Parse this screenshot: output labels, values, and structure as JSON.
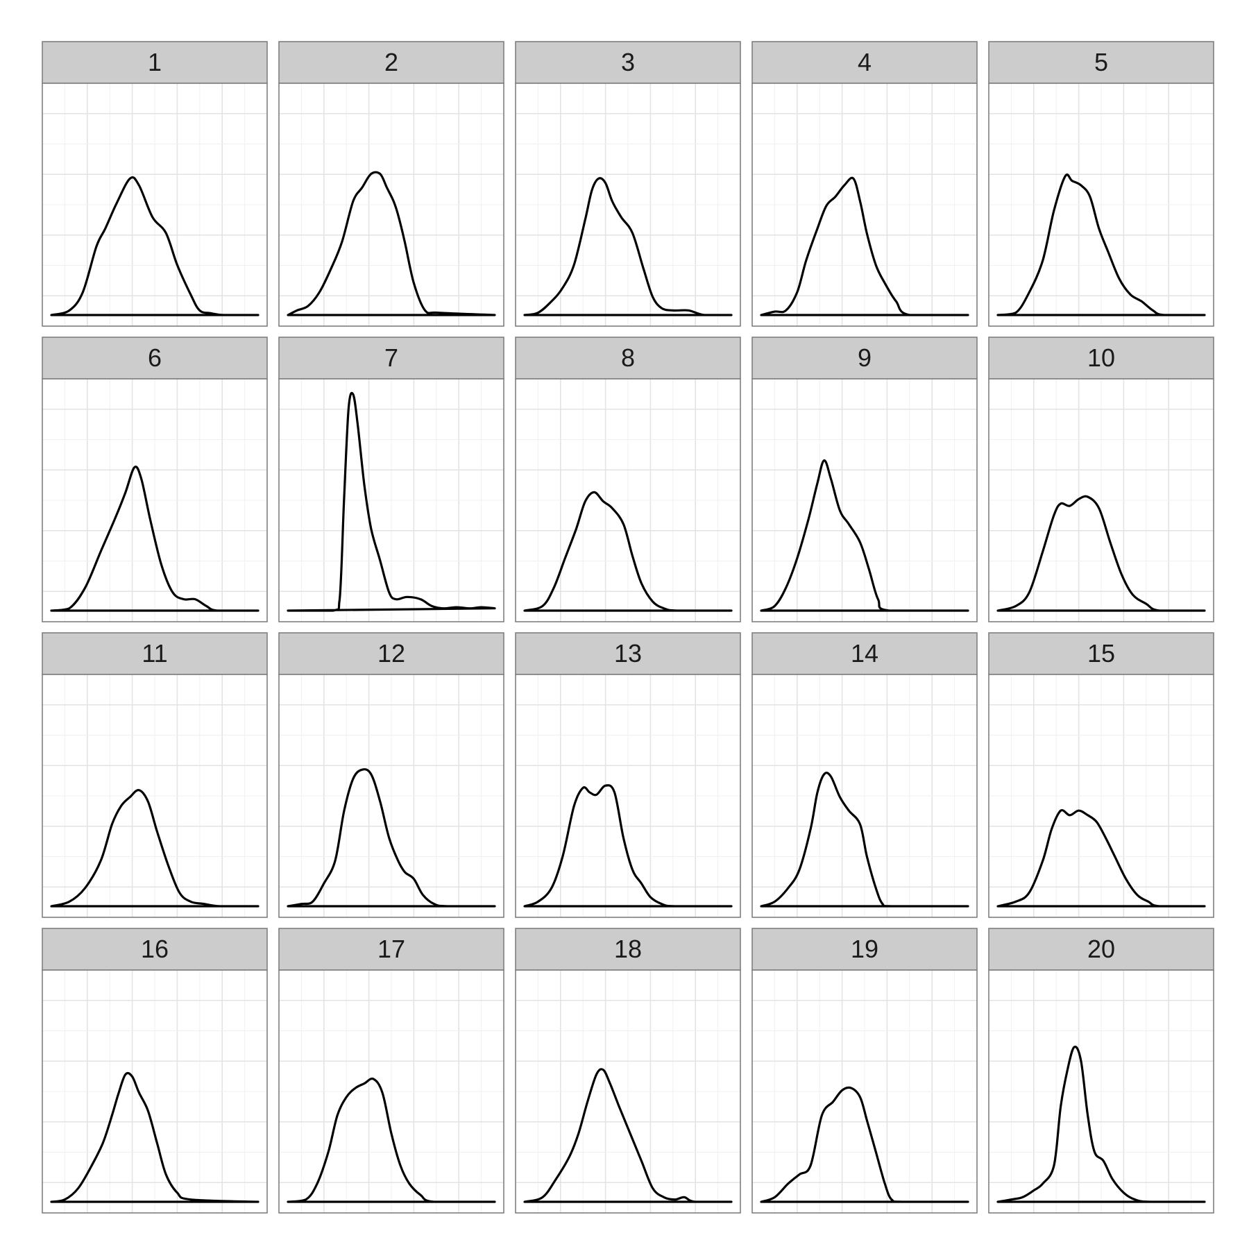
{
  "chart_data": {
    "type": "line",
    "subtype": "density-small-multiples",
    "layout": "5 columns x 4 rows",
    "facet_strip_color": "#cccccc",
    "line_color": "#000000",
    "grid": true,
    "xlim": [
      0,
      1
    ],
    "ylim": [
      0,
      1
    ],
    "panels": [
      {
        "label": "1",
        "x": [
          0.04,
          0.12,
          0.18,
          0.24,
          0.28,
          0.33,
          0.39,
          0.43,
          0.49,
          0.55,
          0.6,
          0.66,
          0.7,
          0.75,
          0.81,
          0.96
        ],
        "y": [
          0,
          0.02,
          0.1,
          0.3,
          0.38,
          0.49,
          0.6,
          0.57,
          0.43,
          0.36,
          0.22,
          0.09,
          0.02,
          0.008,
          0,
          0
        ]
      },
      {
        "label": "2",
        "x": [
          0.04,
          0.08,
          0.13,
          0.18,
          0.23,
          0.28,
          0.33,
          0.37,
          0.41,
          0.45,
          0.48,
          0.51,
          0.53,
          0.56,
          0.6,
          0.65,
          0.71,
          0.96
        ],
        "y": [
          0,
          0.02,
          0.04,
          0.1,
          0.2,
          0.32,
          0.5,
          0.56,
          0.62,
          0.62,
          0.56,
          0.5,
          0.44,
          0.32,
          0.14,
          0.02,
          0.01,
          0
        ]
      },
      {
        "label": "3",
        "x": [
          0.04,
          0.1,
          0.16,
          0.21,
          0.26,
          0.31,
          0.34,
          0.37,
          0.4,
          0.43,
          0.47,
          0.52,
          0.57,
          0.61,
          0.65,
          0.7,
          0.77,
          0.84,
          0.96
        ],
        "y": [
          0,
          0.01,
          0.06,
          0.12,
          0.22,
          0.42,
          0.55,
          0.6,
          0.58,
          0.5,
          0.43,
          0.36,
          0.2,
          0.08,
          0.03,
          0.02,
          0.02,
          0,
          0
        ]
      },
      {
        "label": "4",
        "x": [
          0.04,
          0.1,
          0.15,
          0.2,
          0.24,
          0.29,
          0.33,
          0.37,
          0.41,
          0.45,
          0.48,
          0.51,
          0.55,
          0.59,
          0.64,
          0.7,
          0.96
        ],
        "y": [
          0,
          0.015,
          0.02,
          0.1,
          0.24,
          0.38,
          0.48,
          0.52,
          0.57,
          0.6,
          0.5,
          0.36,
          0.22,
          0.14,
          0.06,
          0,
          0
        ]
      },
      {
        "label": "5",
        "x": [
          0.04,
          0.12,
          0.18,
          0.24,
          0.29,
          0.34,
          0.37,
          0.41,
          0.45,
          0.49,
          0.53,
          0.58,
          0.63,
          0.68,
          0.73,
          0.78,
          0.96
        ],
        "y": [
          0,
          0.01,
          0.1,
          0.24,
          0.46,
          0.61,
          0.59,
          0.57,
          0.52,
          0.38,
          0.28,
          0.16,
          0.09,
          0.06,
          0.02,
          0,
          0
        ]
      },
      {
        "label": "6",
        "x": [
          0.04,
          0.12,
          0.19,
          0.26,
          0.33,
          0.37,
          0.41,
          0.44,
          0.48,
          0.53,
          0.58,
          0.63,
          0.68,
          0.73,
          0.78,
          0.96
        ],
        "y": [
          0,
          0.01,
          0.1,
          0.26,
          0.42,
          0.52,
          0.63,
          0.58,
          0.4,
          0.2,
          0.08,
          0.05,
          0.05,
          0.02,
          0,
          0
        ]
      },
      {
        "label": "7",
        "x": [
          0.04,
          0.24,
          0.27,
          0.29,
          0.31,
          0.33,
          0.35,
          0.38,
          0.41,
          0.45,
          0.49,
          0.52,
          0.57,
          0.63,
          0.68,
          0.73,
          0.79,
          0.85,
          0.9,
          0.96
        ],
        "y": [
          0,
          0,
          0.05,
          0.5,
          0.89,
          0.95,
          0.82,
          0.55,
          0.36,
          0.22,
          0.08,
          0.05,
          0.06,
          0.05,
          0.02,
          0.01,
          0.015,
          0.01,
          0.015,
          0.01
        ]
      },
      {
        "label": "8",
        "x": [
          0.04,
          0.12,
          0.17,
          0.22,
          0.27,
          0.31,
          0.35,
          0.39,
          0.43,
          0.48,
          0.52,
          0.56,
          0.61,
          0.66,
          0.72,
          0.96
        ],
        "y": [
          0,
          0.02,
          0.1,
          0.23,
          0.36,
          0.48,
          0.52,
          0.48,
          0.45,
          0.38,
          0.24,
          0.12,
          0.04,
          0.01,
          0,
          0
        ]
      },
      {
        "label": "9",
        "x": [
          0.04,
          0.1,
          0.15,
          0.2,
          0.25,
          0.29,
          0.32,
          0.35,
          0.39,
          0.43,
          0.48,
          0.52,
          0.56,
          0.61,
          0.96
        ],
        "y": [
          0,
          0.02,
          0.1,
          0.23,
          0.4,
          0.56,
          0.66,
          0.58,
          0.44,
          0.38,
          0.3,
          0.18,
          0.05,
          0,
          0
        ]
      },
      {
        "label": "10",
        "x": [
          0.04,
          0.12,
          0.18,
          0.24,
          0.29,
          0.32,
          0.36,
          0.4,
          0.44,
          0.49,
          0.54,
          0.59,
          0.64,
          0.7,
          0.76,
          0.96
        ],
        "y": [
          0,
          0.02,
          0.08,
          0.26,
          0.42,
          0.47,
          0.46,
          0.49,
          0.5,
          0.45,
          0.3,
          0.16,
          0.07,
          0.03,
          0,
          0
        ]
      },
      {
        "label": "11",
        "x": [
          0.04,
          0.12,
          0.19,
          0.26,
          0.31,
          0.35,
          0.39,
          0.43,
          0.47,
          0.51,
          0.56,
          0.61,
          0.66,
          0.72,
          0.79,
          0.96
        ],
        "y": [
          0,
          0.02,
          0.08,
          0.2,
          0.36,
          0.44,
          0.48,
          0.51,
          0.46,
          0.33,
          0.18,
          0.06,
          0.02,
          0.01,
          0,
          0
        ]
      },
      {
        "label": "12",
        "x": [
          0.04,
          0.1,
          0.15,
          0.2,
          0.25,
          0.29,
          0.33,
          0.37,
          0.41,
          0.45,
          0.49,
          0.53,
          0.56,
          0.6,
          0.64,
          0.69,
          0.75,
          0.96
        ],
        "y": [
          0,
          0.01,
          0.02,
          0.1,
          0.2,
          0.42,
          0.56,
          0.6,
          0.58,
          0.46,
          0.3,
          0.2,
          0.15,
          0.12,
          0.05,
          0.01,
          0,
          0
        ]
      },
      {
        "label": "13",
        "x": [
          0.04,
          0.1,
          0.16,
          0.21,
          0.26,
          0.3,
          0.33,
          0.36,
          0.4,
          0.44,
          0.48,
          0.52,
          0.56,
          0.6,
          0.65,
          0.71,
          0.96
        ],
        "y": [
          0,
          0.02,
          0.08,
          0.22,
          0.44,
          0.52,
          0.5,
          0.49,
          0.53,
          0.5,
          0.3,
          0.16,
          0.1,
          0.04,
          0.01,
          0,
          0
        ]
      },
      {
        "label": "14",
        "x": [
          0.04,
          0.1,
          0.16,
          0.21,
          0.26,
          0.29,
          0.32,
          0.35,
          0.39,
          0.43,
          0.48,
          0.51,
          0.55,
          0.58,
          0.62,
          0.96
        ],
        "y": [
          0,
          0.02,
          0.08,
          0.16,
          0.34,
          0.5,
          0.58,
          0.57,
          0.48,
          0.42,
          0.36,
          0.22,
          0.08,
          0.01,
          0,
          0
        ]
      },
      {
        "label": "15",
        "x": [
          0.04,
          0.12,
          0.18,
          0.24,
          0.28,
          0.32,
          0.36,
          0.4,
          0.44,
          0.48,
          0.52,
          0.56,
          0.61,
          0.66,
          0.71,
          0.76,
          0.96
        ],
        "y": [
          0,
          0.02,
          0.06,
          0.2,
          0.34,
          0.42,
          0.4,
          0.42,
          0.4,
          0.37,
          0.3,
          0.22,
          0.12,
          0.05,
          0.02,
          0,
          0
        ]
      },
      {
        "label": "16",
        "x": [
          0.04,
          0.1,
          0.16,
          0.22,
          0.27,
          0.31,
          0.34,
          0.37,
          0.4,
          0.43,
          0.47,
          0.51,
          0.55,
          0.6,
          0.66,
          0.96
        ],
        "y": [
          0,
          0.01,
          0.06,
          0.16,
          0.26,
          0.38,
          0.48,
          0.56,
          0.55,
          0.48,
          0.4,
          0.26,
          0.12,
          0.04,
          0.01,
          0
        ]
      },
      {
        "label": "17",
        "x": [
          0.04,
          0.12,
          0.17,
          0.22,
          0.26,
          0.3,
          0.34,
          0.38,
          0.42,
          0.46,
          0.5,
          0.54,
          0.58,
          0.63,
          0.69,
          0.96
        ],
        "y": [
          0,
          0.01,
          0.08,
          0.22,
          0.38,
          0.46,
          0.5,
          0.52,
          0.54,
          0.48,
          0.3,
          0.16,
          0.08,
          0.03,
          0,
          0
        ]
      },
      {
        "label": "18",
        "x": [
          0.04,
          0.12,
          0.18,
          0.24,
          0.28,
          0.32,
          0.36,
          0.39,
          0.42,
          0.46,
          0.51,
          0.56,
          0.61,
          0.66,
          0.71,
          0.75,
          0.8,
          0.96
        ],
        "y": [
          0,
          0.02,
          0.1,
          0.2,
          0.3,
          0.44,
          0.56,
          0.58,
          0.52,
          0.42,
          0.3,
          0.18,
          0.06,
          0.02,
          0.01,
          0.02,
          0,
          0
        ]
      },
      {
        "label": "19",
        "x": [
          0.04,
          0.1,
          0.16,
          0.21,
          0.26,
          0.31,
          0.36,
          0.4,
          0.44,
          0.48,
          0.51,
          0.55,
          0.59,
          0.62,
          0.67,
          0.96
        ],
        "y": [
          0,
          0.02,
          0.08,
          0.12,
          0.16,
          0.38,
          0.44,
          0.49,
          0.5,
          0.46,
          0.36,
          0.22,
          0.08,
          0.01,
          0,
          0
        ]
      },
      {
        "label": "20",
        "x": [
          0.04,
          0.1,
          0.15,
          0.2,
          0.24,
          0.29,
          0.32,
          0.35,
          0.38,
          0.41,
          0.44,
          0.47,
          0.51,
          0.55,
          0.6,
          0.65,
          0.72,
          0.96
        ],
        "y": [
          0,
          0.01,
          0.02,
          0.05,
          0.08,
          0.16,
          0.42,
          0.58,
          0.68,
          0.62,
          0.38,
          0.22,
          0.18,
          0.1,
          0.04,
          0.01,
          0,
          0
        ]
      }
    ]
  }
}
